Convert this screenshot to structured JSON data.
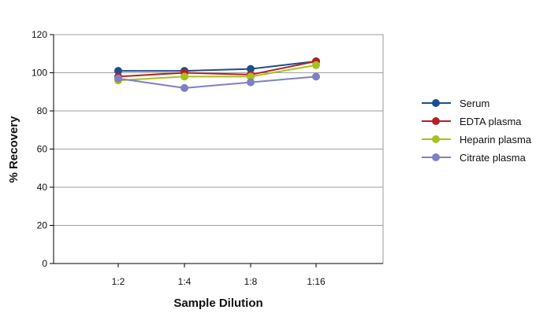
{
  "chart_data": {
    "type": "line",
    "title": "",
    "xlabel": "Sample Dilution",
    "ylabel": "% Recovery",
    "categories": [
      "1:2",
      "1:4",
      "1:8",
      "1:16"
    ],
    "ylim": [
      0,
      120
    ],
    "yticks": [
      0,
      20,
      40,
      60,
      80,
      100,
      120
    ],
    "grid": true,
    "legend_position": "right",
    "series": [
      {
        "name": "Serum",
        "color": "#1f4e8c",
        "values": [
          101,
          101,
          102,
          106
        ]
      },
      {
        "name": "EDTA plasma",
        "color": "#b22222",
        "values": [
          98,
          100,
          99,
          106
        ]
      },
      {
        "name": "Heparin plasma",
        "color": "#a7c11d",
        "values": [
          96,
          98,
          98,
          104
        ]
      },
      {
        "name": "Citrate plasma",
        "color": "#7f7fc5",
        "values": [
          97,
          92,
          95,
          98
        ]
      }
    ]
  }
}
